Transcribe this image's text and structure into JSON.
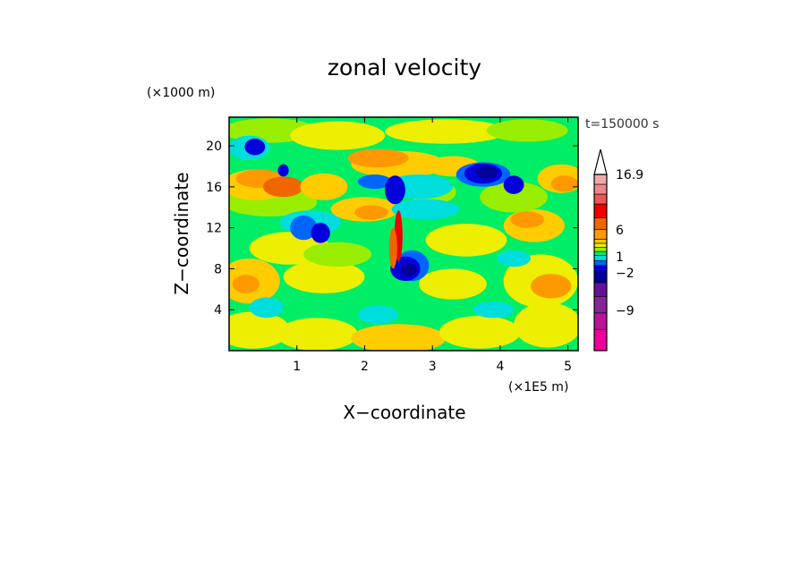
{
  "chart_data": {
    "type": "heatmap",
    "title": "zonal velocity",
    "xlabel": "X−coordinate",
    "ylabel": "Z−coordinate",
    "x_unit": "(×1E5 m)",
    "y_unit": "(×1000 m)",
    "time_label": "t=150000 s",
    "xlim": [
      0,
      5.15
    ],
    "ylim": [
      0,
      22.8
    ],
    "x_ticks": [
      1,
      2,
      3,
      4,
      5
    ],
    "y_ticks": [
      4,
      8,
      12,
      16,
      20
    ],
    "colorbar": {
      "labels": [
        "16.9",
        "6",
        "1",
        "−2",
        "−9"
      ],
      "colors": [
        "#ee0099",
        "#bb1199",
        "#882299",
        "#661199",
        "#000099",
        "#0000dd",
        "#0066ff",
        "#00dddd",
        "#00ee66",
        "#99ee00",
        "#eeee00",
        "#ffcc00",
        "#ff9900",
        "#ee6600",
        "#ee0000",
        "#ee5555",
        "#ee8888",
        "#eeaaaa"
      ],
      "extend_max": true
    },
    "grid": "off",
    "legend": "colorbar-right"
  }
}
